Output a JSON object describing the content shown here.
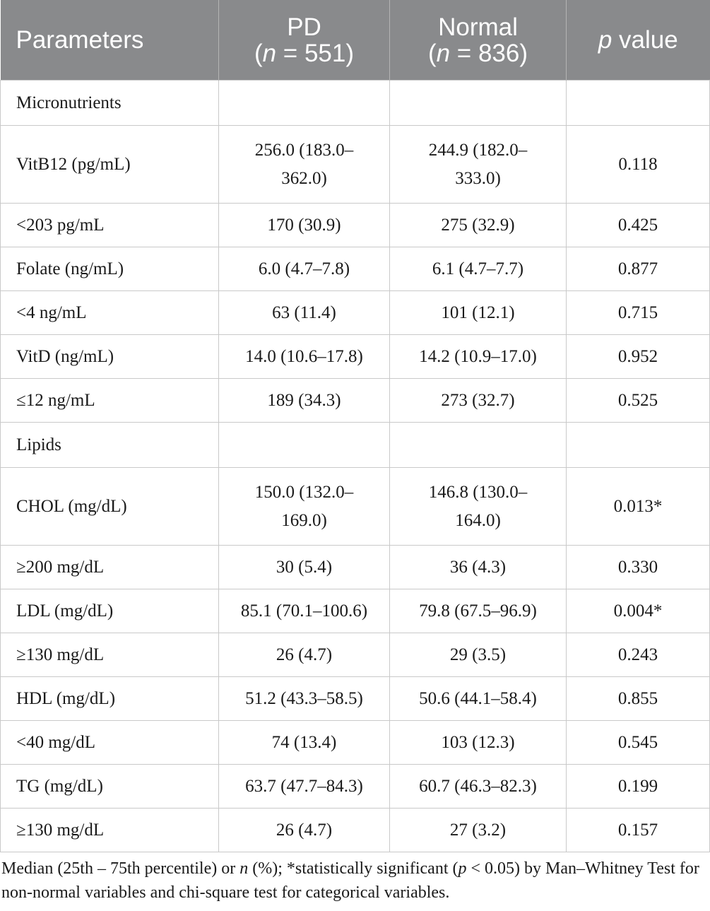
{
  "table": {
    "headers": [
      {
        "line1": "Parameters",
        "line2": ""
      },
      {
        "line1": "PD",
        "line2_pre": "(",
        "line2_n": "n",
        "line2_post": " = 551)"
      },
      {
        "line1": "Normal",
        "line2_pre": "(",
        "line2_n": "n",
        "line2_post": " = 836)"
      },
      {
        "line1_p": "p",
        "line1_rest": " value"
      }
    ],
    "rows": [
      {
        "type": "section",
        "label": "Micronutrients"
      },
      {
        "label": "VitB12 (pg/mL)",
        "pd": "256.0 (183.0–\n362.0)",
        "normal": "244.9 (182.0–\n333.0)",
        "p": "0.118"
      },
      {
        "label": "<203 pg/mL",
        "pd": "170 (30.9)",
        "normal": "275 (32.9)",
        "p": "0.425"
      },
      {
        "label": "Folate (ng/mL)",
        "pd": "6.0 (4.7–7.8)",
        "normal": "6.1 (4.7–7.7)",
        "p": "0.877"
      },
      {
        "label": "<4 ng/mL",
        "pd": "63 (11.4)",
        "normal": "101 (12.1)",
        "p": "0.715"
      },
      {
        "label": "VitD (ng/mL)",
        "pd": "14.0 (10.6–17.8)",
        "normal": "14.2 (10.9–17.0)",
        "p": "0.952"
      },
      {
        "label": "≤12 ng/mL",
        "pd": "189 (34.3)",
        "normal": "273 (32.7)",
        "p": "0.525"
      },
      {
        "type": "section",
        "label": "Lipids"
      },
      {
        "label": "CHOL (mg/dL)",
        "pd": "150.0 (132.0–\n169.0)",
        "normal": "146.8 (130.0–\n164.0)",
        "p": "0.013*"
      },
      {
        "label": "≥200 mg/dL",
        "pd": "30 (5.4)",
        "normal": "36 (4.3)",
        "p": "0.330"
      },
      {
        "label": "LDL (mg/dL)",
        "pd": "85.1 (70.1–100.6)",
        "normal": "79.8 (67.5–96.9)",
        "p": "0.004*"
      },
      {
        "label": "≥130 mg/dL",
        "pd": "26 (4.7)",
        "normal": "29 (3.5)",
        "p": "0.243"
      },
      {
        "label": "HDL (mg/dL)",
        "pd": "51.2 (43.3–58.5)",
        "normal": "50.6 (44.1–58.4)",
        "p": "0.855"
      },
      {
        "label": "<40 mg/dL",
        "pd": "74 (13.4)",
        "normal": "103 (12.3)",
        "p": "0.545"
      },
      {
        "label": "TG (mg/dL)",
        "pd": "63.7 (47.7–84.3)",
        "normal": "60.7 (46.3–82.3)",
        "p": "0.199"
      },
      {
        "label": "≥130 mg/dL",
        "pd": "26 (4.7)",
        "normal": "27 (3.2)",
        "p": "0.157"
      }
    ]
  },
  "footnote": {
    "t1": "Median (25th – 75th percentile) or ",
    "n": "n",
    "t2": " (%); *statistically significant (",
    "p": "p",
    "t3": " < 0.05) by Man–Whitney Test for non-normal variables and chi-square test for categorical variables."
  }
}
